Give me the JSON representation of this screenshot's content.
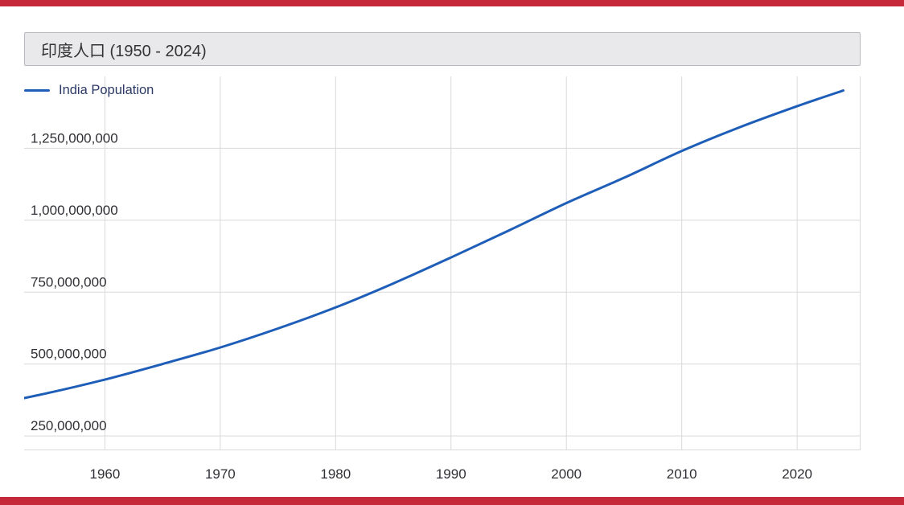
{
  "colors": {
    "accent_bar": "#c5293a",
    "title_bg": "#e9e9ec",
    "title_border": "#b9b9bf",
    "title_text": "#333333",
    "legend_text": "#2b3a67",
    "axis_label": "#2f2f35",
    "grid": "#d9d9dc"
  },
  "chart_data": {
    "type": "line",
    "title": "印度人口 (1950 - 2024)",
    "legend_position": "top-left",
    "grid": true,
    "xlabel": "",
    "ylabel": "",
    "series": [
      {
        "name": "India Population",
        "color": "#1e5eb8",
        "x": [
          1950,
          1955,
          1960,
          1965,
          1970,
          1975,
          1980,
          1985,
          1990,
          1995,
          2000,
          2005,
          2010,
          2015,
          2020,
          2024
        ],
        "values": [
          357021100,
          398577992,
          445954579,
          500114346,
          557501301,
          623524219,
          696828385,
          780242084,
          870452165,
          963922588,
          1059633675,
          1147609927,
          1240613620,
          1322866505,
          1396387127,
          1450935791
        ]
      }
    ],
    "x_ticks": [
      "1960",
      "1970",
      "1980",
      "1990",
      "2000",
      "2010",
      "2020"
    ],
    "x_tick_values": [
      1960,
      1970,
      1980,
      1990,
      2000,
      2010,
      2020
    ],
    "y_gridline_values": [
      250000000,
      500000000,
      750000000,
      1000000000,
      1250000000
    ],
    "y_tick_labels": [
      "250,000,000",
      "500,000,000",
      "750,000,000",
      "1,000,000,000",
      "1,250,000,000"
    ],
    "x_range": [
      1953,
      2025.5
    ],
    "y_range": [
      200000000,
      1500000000
    ]
  }
}
